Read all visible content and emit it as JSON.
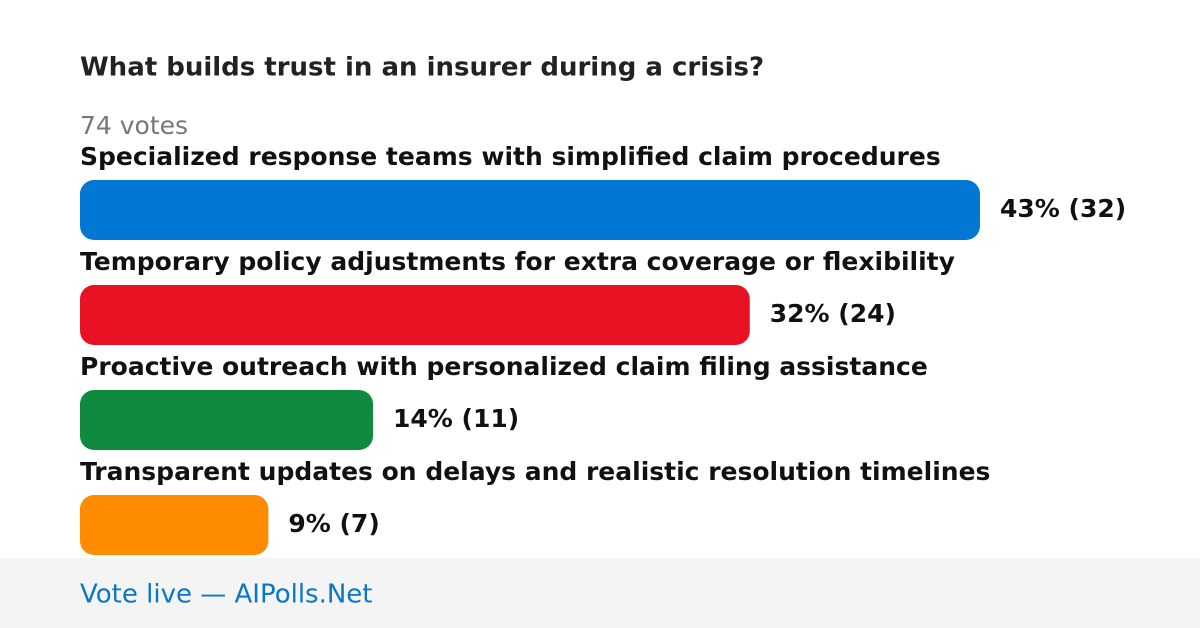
{
  "chart_data": {
    "type": "bar",
    "orientation": "horizontal",
    "title": "What builds trust in an insurer during a crisis?",
    "subtitle": "74 votes",
    "categories": [
      "Specialized response teams with simplified claim procedures",
      "Temporary policy adjustments for extra coverage or flexibility",
      "Proactive outreach with personalized claim filing assistance",
      "Transparent updates on delays and realistic resolution timelines"
    ],
    "values": [
      43,
      32,
      14,
      9
    ],
    "value_labels": [
      "43% (32)",
      "32% (24)",
      "14% (11)",
      "9% (7)"
    ],
    "colors": [
      "#0277d4",
      "#e81224",
      "#0f8a3f",
      "#ff8c00"
    ],
    "footer": "Vote live — AIPolls.Net"
  }
}
